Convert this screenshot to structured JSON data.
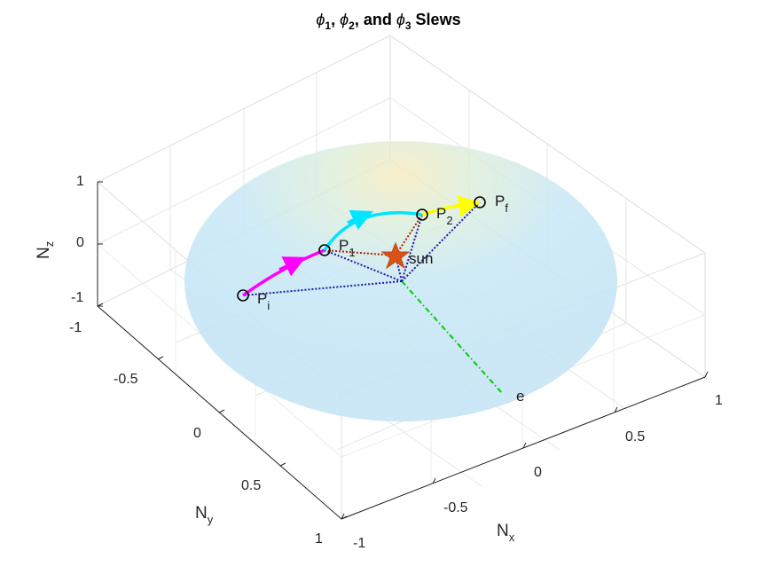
{
  "chart_data": {
    "type": "scatter",
    "title": {
      "phi": "ϕ",
      "s1": "1",
      "sep1": ", ",
      "s2": "2",
      "sep2": ", and ",
      "s3": "3",
      "tail": " Slews"
    },
    "axes": {
      "x": {
        "label": "N",
        "sub": "x",
        "range": [
          -1,
          1
        ],
        "ticks": [
          "-1",
          "-0.5",
          "0",
          "0.5",
          "1"
        ]
      },
      "y": {
        "label": "N",
        "sub": "y",
        "range": [
          -1,
          1
        ],
        "ticks": [
          "-1",
          "-0.5",
          "0",
          "0.5",
          "1"
        ]
      },
      "z": {
        "label": "N",
        "sub": "z",
        "range": [
          -1,
          1
        ],
        "ticks": [
          "-1",
          "0",
          "1"
        ]
      }
    },
    "grid": true,
    "points": [
      {
        "id": "Pi",
        "label": "P",
        "sub": "i"
      },
      {
        "id": "P1",
        "label": "P",
        "sub": "1"
      },
      {
        "id": "P2",
        "label": "P",
        "sub": "2"
      },
      {
        "id": "Pf",
        "label": "P",
        "sub": "f"
      }
    ],
    "markers": {
      "sun": "sun",
      "e": "e"
    },
    "slews": [
      {
        "name": "ϕ1",
        "from": "Pi",
        "to": "P1",
        "color": "#ff00ff"
      },
      {
        "name": "ϕ2",
        "from": "P1",
        "to": "P2",
        "color": "#00e5ff"
      },
      {
        "name": "ϕ3",
        "from": "P2",
        "to": "Pf",
        "color": "#ffff00"
      }
    ],
    "colors": {
      "sun": "#d95319",
      "e_axis": "#00cc00",
      "sun_lines": "#aa2200",
      "center_lines": "#0000aa",
      "sphere": "#c8e8f6"
    }
  }
}
